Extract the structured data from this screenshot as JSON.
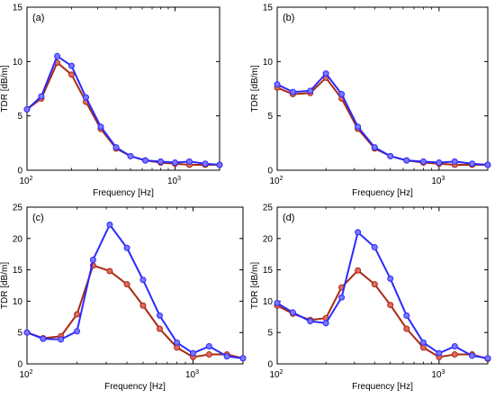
{
  "figure": {
    "colors": {
      "blue": "#2b2bff",
      "red": "#a82a12",
      "marker_blue": "#7b76ff",
      "marker_red": "#e06a5c",
      "axis": "#000000"
    }
  },
  "chart_data": [
    {
      "type": "line",
      "panel_label": "(a)",
      "xlabel": "Frequency [Hz]",
      "ylabel": "TDR [dB/m]",
      "xscale": "log",
      "xlim": [
        100,
        2000
      ],
      "ylim": [
        0,
        15
      ],
      "yticks": [
        0,
        5,
        10,
        15
      ],
      "x": [
        100,
        125,
        160,
        200,
        250,
        315,
        400,
        500,
        630,
        800,
        1000,
        1250,
        1600,
        2000
      ],
      "series": [
        {
          "color": "blue",
          "values": [
            5.6,
            6.8,
            10.5,
            9.6,
            6.7,
            4.0,
            2.1,
            1.3,
            0.9,
            0.8,
            0.7,
            0.8,
            0.6,
            0.5
          ]
        },
        {
          "color": "red",
          "values": [
            5.6,
            6.6,
            9.9,
            8.8,
            6.3,
            3.8,
            2.0,
            1.3,
            0.9,
            0.7,
            0.6,
            0.5,
            0.5,
            0.5
          ]
        }
      ]
    },
    {
      "type": "line",
      "panel_label": "(b)",
      "xlabel": "Frequency [Hz]",
      "ylabel": "TDR [dB/m]",
      "xscale": "log",
      "xlim": [
        100,
        2000
      ],
      "ylim": [
        0,
        15
      ],
      "yticks": [
        0,
        5,
        10,
        15
      ],
      "x": [
        100,
        125,
        160,
        200,
        250,
        315,
        400,
        500,
        630,
        800,
        1000,
        1250,
        1600,
        2000
      ],
      "series": [
        {
          "color": "blue",
          "values": [
            7.9,
            7.2,
            7.3,
            8.9,
            7.0,
            4.0,
            2.1,
            1.3,
            0.9,
            0.8,
            0.7,
            0.8,
            0.6,
            0.5
          ]
        },
        {
          "color": "red",
          "values": [
            7.6,
            7.0,
            7.1,
            8.5,
            6.6,
            3.8,
            2.0,
            1.3,
            0.9,
            0.7,
            0.6,
            0.5,
            0.5,
            0.5
          ]
        }
      ]
    },
    {
      "type": "line",
      "panel_label": "(c)",
      "xlabel": "Frequency [Hz]",
      "ylabel": "TDR [dB/m]",
      "xscale": "log",
      "xlim": [
        100,
        2000
      ],
      "ylim": [
        0,
        25
      ],
      "yticks": [
        0,
        5,
        10,
        15,
        20,
        25
      ],
      "x": [
        100,
        125,
        160,
        200,
        250,
        315,
        400,
        500,
        630,
        800,
        1000,
        1250,
        1600,
        2000
      ],
      "series": [
        {
          "color": "blue",
          "values": [
            5.0,
            4.0,
            3.9,
            5.2,
            16.6,
            22.2,
            18.5,
            13.4,
            7.7,
            3.4,
            1.7,
            2.8,
            1.2,
            0.9
          ]
        },
        {
          "color": "red",
          "values": [
            5.0,
            4.1,
            4.4,
            7.9,
            15.7,
            14.8,
            12.7,
            9.3,
            5.6,
            2.6,
            1.1,
            1.5,
            1.5,
            0.9
          ]
        }
      ]
    },
    {
      "type": "line",
      "panel_label": "(d)",
      "xlabel": "Frequency [Hz]",
      "ylabel": "TDR [dB/m]",
      "xscale": "log",
      "xlim": [
        100,
        2000
      ],
      "ylim": [
        0,
        25
      ],
      "yticks": [
        0,
        5,
        10,
        15,
        20,
        25
      ],
      "x": [
        100,
        125,
        160,
        200,
        250,
        315,
        400,
        500,
        630,
        800,
        1000,
        1250,
        1600,
        2000
      ],
      "series": [
        {
          "color": "blue",
          "values": [
            9.7,
            8.2,
            6.8,
            6.5,
            10.6,
            21.0,
            18.6,
            13.6,
            7.7,
            3.4,
            1.7,
            2.8,
            1.3,
            0.9
          ]
        },
        {
          "color": "red",
          "values": [
            9.3,
            8.0,
            7.0,
            7.3,
            12.2,
            14.9,
            12.7,
            9.4,
            5.6,
            2.6,
            1.1,
            1.5,
            1.5,
            0.8
          ]
        }
      ]
    }
  ]
}
